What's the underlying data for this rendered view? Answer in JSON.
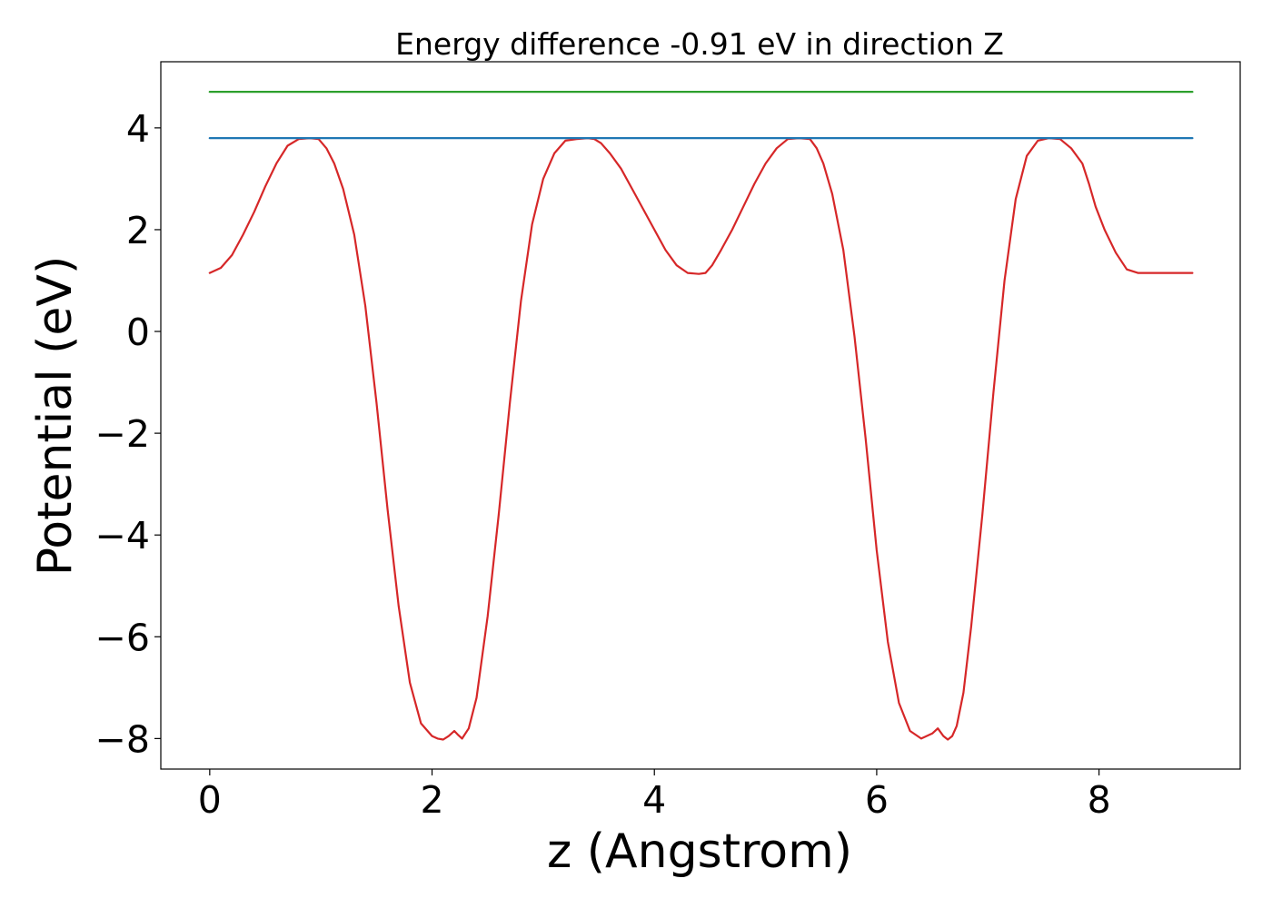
{
  "chart_data": {
    "type": "line",
    "title": "Energy difference -0.91 eV in direction Z",
    "xlabel": "z (Angstrom)",
    "ylabel": "Potential (eV)",
    "xlim": [
      -0.44,
      9.27
    ],
    "ylim": [
      -8.6,
      5.3
    ],
    "xticks": [
      0,
      2,
      4,
      6,
      8
    ],
    "xtick_labels": [
      "0",
      "2",
      "4",
      "6",
      "8"
    ],
    "yticks": [
      -8,
      -6,
      -4,
      -2,
      0,
      2,
      4
    ],
    "ytick_labels": [
      "−8",
      "−6",
      "−4",
      "−2",
      "0",
      "2",
      "4"
    ],
    "grid": false,
    "legend": "none",
    "series": [
      {
        "color": "#d62728",
        "x": [
          0,
          0.1,
          0.2,
          0.3,
          0.4,
          0.5,
          0.6,
          0.7,
          0.8,
          0.9,
          0.98,
          1.05,
          1.12,
          1.2,
          1.3,
          1.4,
          1.5,
          1.6,
          1.7,
          1.8,
          1.9,
          2.0,
          2.05,
          2.1,
          2.15,
          2.2,
          2.23,
          2.27,
          2.33,
          2.4,
          2.5,
          2.6,
          2.7,
          2.8,
          2.9,
          3.0,
          3.1,
          3.2,
          3.3,
          3.4,
          3.46,
          3.52,
          3.6,
          3.7,
          3.8,
          3.9,
          4.0,
          4.1,
          4.2,
          4.3,
          4.4,
          4.46,
          4.52,
          4.6,
          4.7,
          4.8,
          4.9,
          5.0,
          5.1,
          5.2,
          5.3,
          5.4,
          5.46,
          5.52,
          5.6,
          5.7,
          5.8,
          5.9,
          6.0,
          6.1,
          6.2,
          6.3,
          6.4,
          6.5,
          6.55,
          6.6,
          6.64,
          6.68,
          6.72,
          6.78,
          6.85,
          6.95,
          7.05,
          7.15,
          7.25,
          7.35,
          7.45,
          7.55,
          7.65,
          7.75,
          7.85,
          7.91,
          7.97,
          8.05,
          8.15,
          8.25,
          8.35,
          8.45,
          8.55,
          8.65,
          8.75,
          8.84
        ],
        "y": [
          1.15,
          1.25,
          1.5,
          1.9,
          2.35,
          2.85,
          3.3,
          3.65,
          3.78,
          3.8,
          3.78,
          3.6,
          3.3,
          2.8,
          1.9,
          0.5,
          -1.4,
          -3.5,
          -5.4,
          -6.9,
          -7.7,
          -7.95,
          -8.0,
          -8.02,
          -7.95,
          -7.85,
          -7.92,
          -8.0,
          -7.8,
          -7.2,
          -5.6,
          -3.6,
          -1.4,
          0.6,
          2.1,
          3.0,
          3.5,
          3.75,
          3.78,
          3.8,
          3.78,
          3.7,
          3.5,
          3.2,
          2.8,
          2.4,
          2.0,
          1.6,
          1.3,
          1.15,
          1.13,
          1.15,
          1.3,
          1.6,
          2.0,
          2.45,
          2.9,
          3.3,
          3.6,
          3.78,
          3.8,
          3.78,
          3.6,
          3.3,
          2.7,
          1.6,
          -0.1,
          -2.1,
          -4.3,
          -6.1,
          -7.3,
          -7.85,
          -8.0,
          -7.9,
          -7.8,
          -7.95,
          -8.02,
          -7.95,
          -7.75,
          -7.1,
          -5.8,
          -3.6,
          -1.2,
          1.0,
          2.6,
          3.45,
          3.75,
          3.8,
          3.78,
          3.6,
          3.3,
          2.9,
          2.45,
          2.0,
          1.55,
          1.22,
          1.15,
          1.15,
          1.15,
          1.15,
          1.15,
          1.15
        ]
      },
      {
        "color": "#1f77b4",
        "x": [
          0,
          8.84
        ],
        "y": [
          3.8,
          3.8
        ]
      },
      {
        "color": "#2ca02c",
        "x": [
          0,
          8.84
        ],
        "y": [
          4.71,
          4.71
        ]
      }
    ]
  }
}
